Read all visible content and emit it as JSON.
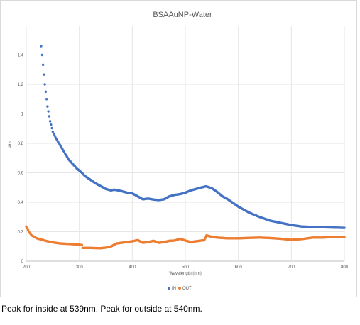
{
  "caption": "Peak for inside at 539nm. Peak for outside at 540nm.",
  "chart_data": {
    "type": "scatter",
    "title": "BSAAuNP-Water",
    "xlabel": "Wavelength (nm)",
    "ylabel": "Abs",
    "xlim": [
      200,
      800
    ],
    "ylim": [
      0,
      1.6
    ],
    "xticks": [
      "200",
      "300",
      "400",
      "500",
      "600",
      "700",
      "800"
    ],
    "yticks": [
      "0",
      "0.2",
      "0.4",
      "0.6",
      "0.8",
      "1",
      "1.2",
      "1.4"
    ],
    "grid": true,
    "legend_position": "bottom",
    "series": [
      {
        "name": "IN",
        "color": "#4472C4",
        "x": [
          228,
          230,
          235,
          240,
          245,
          250,
          255,
          260,
          265,
          270,
          275,
          280,
          285,
          290,
          295,
          300,
          305,
          310,
          320,
          330,
          340,
          350,
          360,
          365,
          370,
          380,
          390,
          400,
          410,
          420,
          430,
          440,
          450,
          460,
          470,
          480,
          490,
          500,
          510,
          520,
          530,
          539,
          550,
          560,
          570,
          580,
          600,
          620,
          640,
          660,
          680,
          700,
          720,
          740,
          760,
          780,
          800
        ],
        "y": [
          1.46,
          1.4,
          1.2,
          1.05,
          0.95,
          0.88,
          0.84,
          0.81,
          0.78,
          0.75,
          0.72,
          0.69,
          0.67,
          0.65,
          0.63,
          0.615,
          0.6,
          0.58,
          0.555,
          0.53,
          0.51,
          0.49,
          0.48,
          0.485,
          0.483,
          0.475,
          0.465,
          0.46,
          0.44,
          0.42,
          0.425,
          0.418,
          0.415,
          0.42,
          0.44,
          0.45,
          0.455,
          0.465,
          0.48,
          0.49,
          0.5,
          0.508,
          0.495,
          0.47,
          0.44,
          0.42,
          0.37,
          0.33,
          0.3,
          0.275,
          0.26,
          0.245,
          0.235,
          0.232,
          0.23,
          0.228,
          0.226
        ]
      },
      {
        "name": "OUT",
        "color": "#ED7D31",
        "x": [
          200,
          205,
          210,
          215,
          220,
          230,
          240,
          250,
          260,
          270,
          280,
          290,
          300,
          305,
          306,
          320,
          340,
          350,
          360,
          370,
          380,
          390,
          400,
          410,
          420,
          430,
          440,
          450,
          460,
          470,
          480,
          490,
          500,
          510,
          520,
          530,
          536,
          540,
          550,
          560,
          580,
          600,
          620,
          640,
          660,
          680,
          700,
          720,
          740,
          760,
          780,
          800
        ],
        "y": [
          0.235,
          0.2,
          0.175,
          0.165,
          0.155,
          0.145,
          0.135,
          0.128,
          0.122,
          0.119,
          0.117,
          0.115,
          0.112,
          0.11,
          0.09,
          0.09,
          0.088,
          0.092,
          0.1,
          0.12,
          0.125,
          0.13,
          0.135,
          0.143,
          0.125,
          0.13,
          0.138,
          0.125,
          0.13,
          0.138,
          0.14,
          0.152,
          0.14,
          0.13,
          0.135,
          0.14,
          0.142,
          0.175,
          0.165,
          0.16,
          0.155,
          0.155,
          0.158,
          0.16,
          0.157,
          0.152,
          0.145,
          0.15,
          0.16,
          0.16,
          0.165,
          0.162
        ]
      }
    ]
  }
}
